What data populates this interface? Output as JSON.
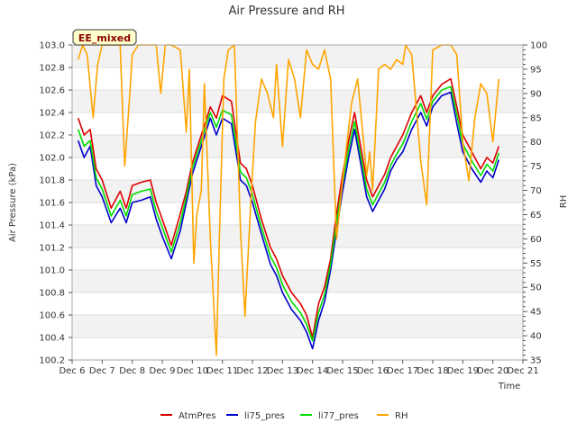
{
  "chart_data": {
    "type": "line",
    "title": "Air Pressure and RH",
    "badge": "EE_mixed",
    "xlabel": "Time",
    "ylabel": "Air Pressure (kPa)",
    "y2label": "RH",
    "xlim": [
      6,
      21
    ],
    "ylim": [
      100.2,
      103.0
    ],
    "y2lim": [
      35,
      100
    ],
    "x_ticks": [
      {
        "value": 6,
        "label": "Dec 6"
      },
      {
        "value": 7,
        "label": "Dec 7"
      },
      {
        "value": 8,
        "label": "Dec 8"
      },
      {
        "value": 9,
        "label": "Dec 9"
      },
      {
        "value": 10,
        "label": "Dec 10"
      },
      {
        "value": 11,
        "label": "Dec 11"
      },
      {
        "value": 12,
        "label": "Dec 12"
      },
      {
        "value": 13,
        "label": "Dec 13"
      },
      {
        "value": 14,
        "label": "Dec 14"
      },
      {
        "value": 15,
        "label": "Dec 15"
      },
      {
        "value": 16,
        "label": "Dec 16"
      },
      {
        "value": 17,
        "label": "Dec 17"
      },
      {
        "value": 18,
        "label": "Dec 18"
      },
      {
        "value": 19,
        "label": "Dec 19"
      },
      {
        "value": 20,
        "label": "Dec 20"
      },
      {
        "value": 21,
        "label": "Dec 21"
      }
    ],
    "y_ticks": [
      {
        "value": 100.2,
        "label": "100.2"
      },
      {
        "value": 100.4,
        "label": "100.4"
      },
      {
        "value": 100.6,
        "label": "100.6"
      },
      {
        "value": 100.8,
        "label": "100.8"
      },
      {
        "value": 101.0,
        "label": "101.0"
      },
      {
        "value": 101.2,
        "label": "101.2"
      },
      {
        "value": 101.4,
        "label": "101.4"
      },
      {
        "value": 101.6,
        "label": "101.6"
      },
      {
        "value": 101.8,
        "label": "101.8"
      },
      {
        "value": 102.0,
        "label": "102.0"
      },
      {
        "value": 102.2,
        "label": "102.2"
      },
      {
        "value": 102.4,
        "label": "102.4"
      },
      {
        "value": 102.6,
        "label": "102.6"
      },
      {
        "value": 102.8,
        "label": "102.8"
      },
      {
        "value": 103.0,
        "label": "103.0"
      }
    ],
    "y2_ticks": [
      {
        "value": 35,
        "label": "35"
      },
      {
        "value": 40,
        "label": "40"
      },
      {
        "value": 45,
        "label": "45"
      },
      {
        "value": 50,
        "label": "50"
      },
      {
        "value": 55,
        "label": "55"
      },
      {
        "value": 60,
        "label": "60"
      },
      {
        "value": 65,
        "label": "65"
      },
      {
        "value": 70,
        "label": "70"
      },
      {
        "value": 75,
        "label": "75"
      },
      {
        "value": 80,
        "label": "80"
      },
      {
        "value": 85,
        "label": "85"
      },
      {
        "value": 90,
        "label": "90"
      },
      {
        "value": 95,
        "label": "95"
      },
      {
        "value": 100,
        "label": "100"
      }
    ],
    "series": [
      {
        "name": "AtmPres",
        "color": "#dd0000",
        "axis": "left",
        "x": [
          6.2,
          6.4,
          6.6,
          6.8,
          7.0,
          7.3,
          7.6,
          7.8,
          8.0,
          8.3,
          8.6,
          8.8,
          9.0,
          9.3,
          9.6,
          9.8,
          10.0,
          10.3,
          10.6,
          10.8,
          11.0,
          11.3,
          11.6,
          11.8,
          12.0,
          12.3,
          12.6,
          12.8,
          13.0,
          13.3,
          13.6,
          13.8,
          14.0,
          14.2,
          14.4,
          14.6,
          14.8,
          15.0,
          15.2,
          15.4,
          15.6,
          15.8,
          16.0,
          16.2,
          16.4,
          16.6,
          16.8,
          17.0,
          17.3,
          17.6,
          17.8,
          18.0,
          18.3,
          18.6,
          18.8,
          19.0,
          19.3,
          19.6,
          19.8,
          20.0,
          20.2
        ],
        "y": [
          102.35,
          102.2,
          102.25,
          101.9,
          101.8,
          101.55,
          101.7,
          101.55,
          101.75,
          101.78,
          101.8,
          101.6,
          101.45,
          101.22,
          101.5,
          101.7,
          101.95,
          102.2,
          102.45,
          102.35,
          102.55,
          102.5,
          101.95,
          101.9,
          101.75,
          101.45,
          101.2,
          101.1,
          100.95,
          100.8,
          100.7,
          100.6,
          100.4,
          100.7,
          100.85,
          101.1,
          101.5,
          101.85,
          102.15,
          102.4,
          102.1,
          101.8,
          101.65,
          101.75,
          101.85,
          102.0,
          102.1,
          102.2,
          102.4,
          102.55,
          102.4,
          102.55,
          102.65,
          102.7,
          102.45,
          102.2,
          102.05,
          101.9,
          102.0,
          101.95,
          102.1
        ]
      },
      {
        "name": "li75_pres",
        "color": "#0000cc",
        "axis": "left",
        "x": [
          6.2,
          6.4,
          6.6,
          6.8,
          7.0,
          7.3,
          7.6,
          7.8,
          8.0,
          8.3,
          8.6,
          8.8,
          9.0,
          9.3,
          9.6,
          9.8,
          10.0,
          10.3,
          10.6,
          10.8,
          11.0,
          11.3,
          11.6,
          11.8,
          12.0,
          12.3,
          12.6,
          12.8,
          13.0,
          13.3,
          13.6,
          13.8,
          14.0,
          14.2,
          14.4,
          14.6,
          14.8,
          15.0,
          15.2,
          15.4,
          15.6,
          15.8,
          16.0,
          16.2,
          16.4,
          16.6,
          16.8,
          17.0,
          17.3,
          17.6,
          17.8,
          18.0,
          18.3,
          18.6,
          18.8,
          19.0,
          19.3,
          19.6,
          19.8,
          20.0,
          20.2
        ],
        "y": [
          102.15,
          102.0,
          102.1,
          101.75,
          101.65,
          101.42,
          101.55,
          101.42,
          101.6,
          101.62,
          101.65,
          101.45,
          101.3,
          101.1,
          101.35,
          101.6,
          101.85,
          102.1,
          102.35,
          102.2,
          102.35,
          102.3,
          101.8,
          101.75,
          101.6,
          101.32,
          101.05,
          100.95,
          100.8,
          100.65,
          100.55,
          100.45,
          100.3,
          100.55,
          100.72,
          101.0,
          101.35,
          101.7,
          102.0,
          102.25,
          101.95,
          101.65,
          101.52,
          101.62,
          101.72,
          101.88,
          101.98,
          102.05,
          102.25,
          102.4,
          102.28,
          102.45,
          102.55,
          102.58,
          102.3,
          102.05,
          101.9,
          101.78,
          101.88,
          101.82,
          101.98
        ]
      },
      {
        "name": "li77_pres",
        "color": "#00dd00",
        "axis": "left",
        "x": [
          6.2,
          6.4,
          6.6,
          6.8,
          7.0,
          7.3,
          7.6,
          7.8,
          8.0,
          8.3,
          8.6,
          8.8,
          9.0,
          9.3,
          9.6,
          9.8,
          10.0,
          10.3,
          10.6,
          10.8,
          11.0,
          11.3,
          11.6,
          11.8,
          12.0,
          12.3,
          12.6,
          12.8,
          13.0,
          13.3,
          13.6,
          13.8,
          14.0,
          14.2,
          14.4,
          14.6,
          14.8,
          15.0,
          15.2,
          15.4,
          15.6,
          15.8,
          16.0,
          16.2,
          16.4,
          16.6,
          16.8,
          17.0,
          17.3,
          17.6,
          17.8,
          18.0,
          18.3,
          18.6,
          18.8,
          19.0,
          19.3,
          19.6,
          19.8,
          20.0,
          20.2
        ],
        "y": [
          102.25,
          102.1,
          102.15,
          101.82,
          101.72,
          101.48,
          101.62,
          101.48,
          101.67,
          101.7,
          101.72,
          101.52,
          101.38,
          101.16,
          101.42,
          101.65,
          101.9,
          102.15,
          102.4,
          102.27,
          102.42,
          102.38,
          101.87,
          101.82,
          101.67,
          101.38,
          101.12,
          101.02,
          100.87,
          100.72,
          100.62,
          100.52,
          100.37,
          100.62,
          100.78,
          101.05,
          101.42,
          101.77,
          102.07,
          102.32,
          102.02,
          101.72,
          101.58,
          101.68,
          101.78,
          101.93,
          102.03,
          102.12,
          102.32,
          102.48,
          102.34,
          102.5,
          102.6,
          102.63,
          102.38,
          102.12,
          101.97,
          101.84,
          101.94,
          101.88,
          102.04
        ]
      },
      {
        "name": "RH",
        "color": "#ffa500",
        "axis": "right",
        "x": [
          6.2,
          6.35,
          6.5,
          6.7,
          6.85,
          7.0,
          7.3,
          7.6,
          7.75,
          7.9,
          8.0,
          8.2,
          8.5,
          8.8,
          8.95,
          9.1,
          9.3,
          9.6,
          9.8,
          9.9,
          10.05,
          10.15,
          10.3,
          10.4,
          10.6,
          10.8,
          10.9,
          11.05,
          11.2,
          11.4,
          11.6,
          11.75,
          11.95,
          12.1,
          12.3,
          12.5,
          12.7,
          12.8,
          13.0,
          13.2,
          13.4,
          13.6,
          13.8,
          14.0,
          14.2,
          14.4,
          14.6,
          14.8,
          15.0,
          15.3,
          15.5,
          15.7,
          15.8,
          15.9,
          16.0,
          16.2,
          16.4,
          16.6,
          16.8,
          17.0,
          17.1,
          17.3,
          17.6,
          17.8,
          18.0,
          18.3,
          18.6,
          18.8,
          19.0,
          19.2,
          19.4,
          19.6,
          19.8,
          20.0,
          20.2
        ],
        "y": [
          97,
          100,
          98,
          85,
          96,
          100,
          100,
          100,
          75,
          88,
          98,
          100,
          100,
          100,
          90,
          100,
          100,
          99,
          82,
          95,
          55,
          65,
          70,
          92,
          60,
          36,
          60,
          93,
          99,
          100,
          62,
          44,
          68,
          84,
          93,
          90,
          85,
          96,
          79,
          97,
          93,
          85,
          99,
          96,
          95,
          99,
          93,
          60,
          72,
          88,
          93,
          80,
          73,
          78,
          70,
          95,
          96,
          95,
          97,
          96,
          100,
          98,
          76,
          67,
          99,
          100,
          100,
          98,
          80,
          72,
          85,
          92,
          90,
          80,
          93
        ]
      }
    ],
    "legend": [
      "AtmPres",
      "li75_pres",
      "li77_pres",
      "RH"
    ],
    "legend_position": "bottom",
    "grid": true
  }
}
